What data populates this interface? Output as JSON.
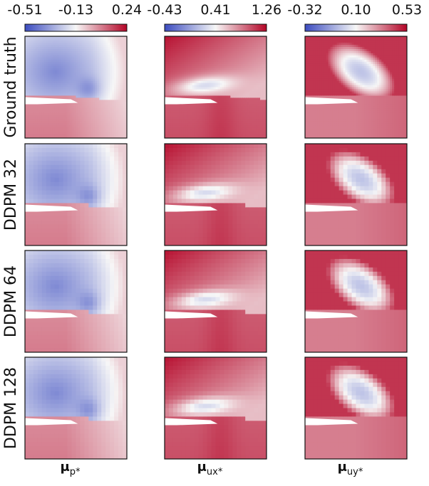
{
  "chart_data": {
    "type": "heatmap",
    "title": "",
    "rows": [
      {
        "label": "Ground truth",
        "grid": null
      },
      {
        "label": "DDPM 32",
        "grid": 32
      },
      {
        "label": "DDPM 64",
        "grid": 64
      },
      {
        "label": "DDPM 128",
        "grid": 128
      }
    ],
    "columns": [
      {
        "label_symbol": "μ",
        "label_sub": "p*",
        "colormap": "coolwarm",
        "colorbar": {
          "min": -0.51,
          "mid": -0.13,
          "max": 0.24,
          "ticks": [
            "-0.51",
            "-0.13",
            "0.24"
          ]
        }
      },
      {
        "label_symbol": "μ",
        "label_sub": "ux*",
        "colormap": "coolwarm",
        "colorbar": {
          "min": -0.43,
          "mid": 0.41,
          "max": 1.26,
          "ticks": [
            "-0.43",
            "0.41",
            "1.26"
          ]
        }
      },
      {
        "label_symbol": "μ",
        "label_sub": "uy*",
        "colormap": "coolwarm",
        "colorbar": {
          "min": -0.32,
          "mid": 0.1,
          "max": 0.53,
          "ticks": [
            "-0.32",
            "0.10",
            "0.53"
          ]
        }
      }
    ],
    "colors": {
      "cold": "#3b4cc0",
      "neutral": "#f7f7f7",
      "hot": "#b40426",
      "frame": "#111111"
    }
  }
}
